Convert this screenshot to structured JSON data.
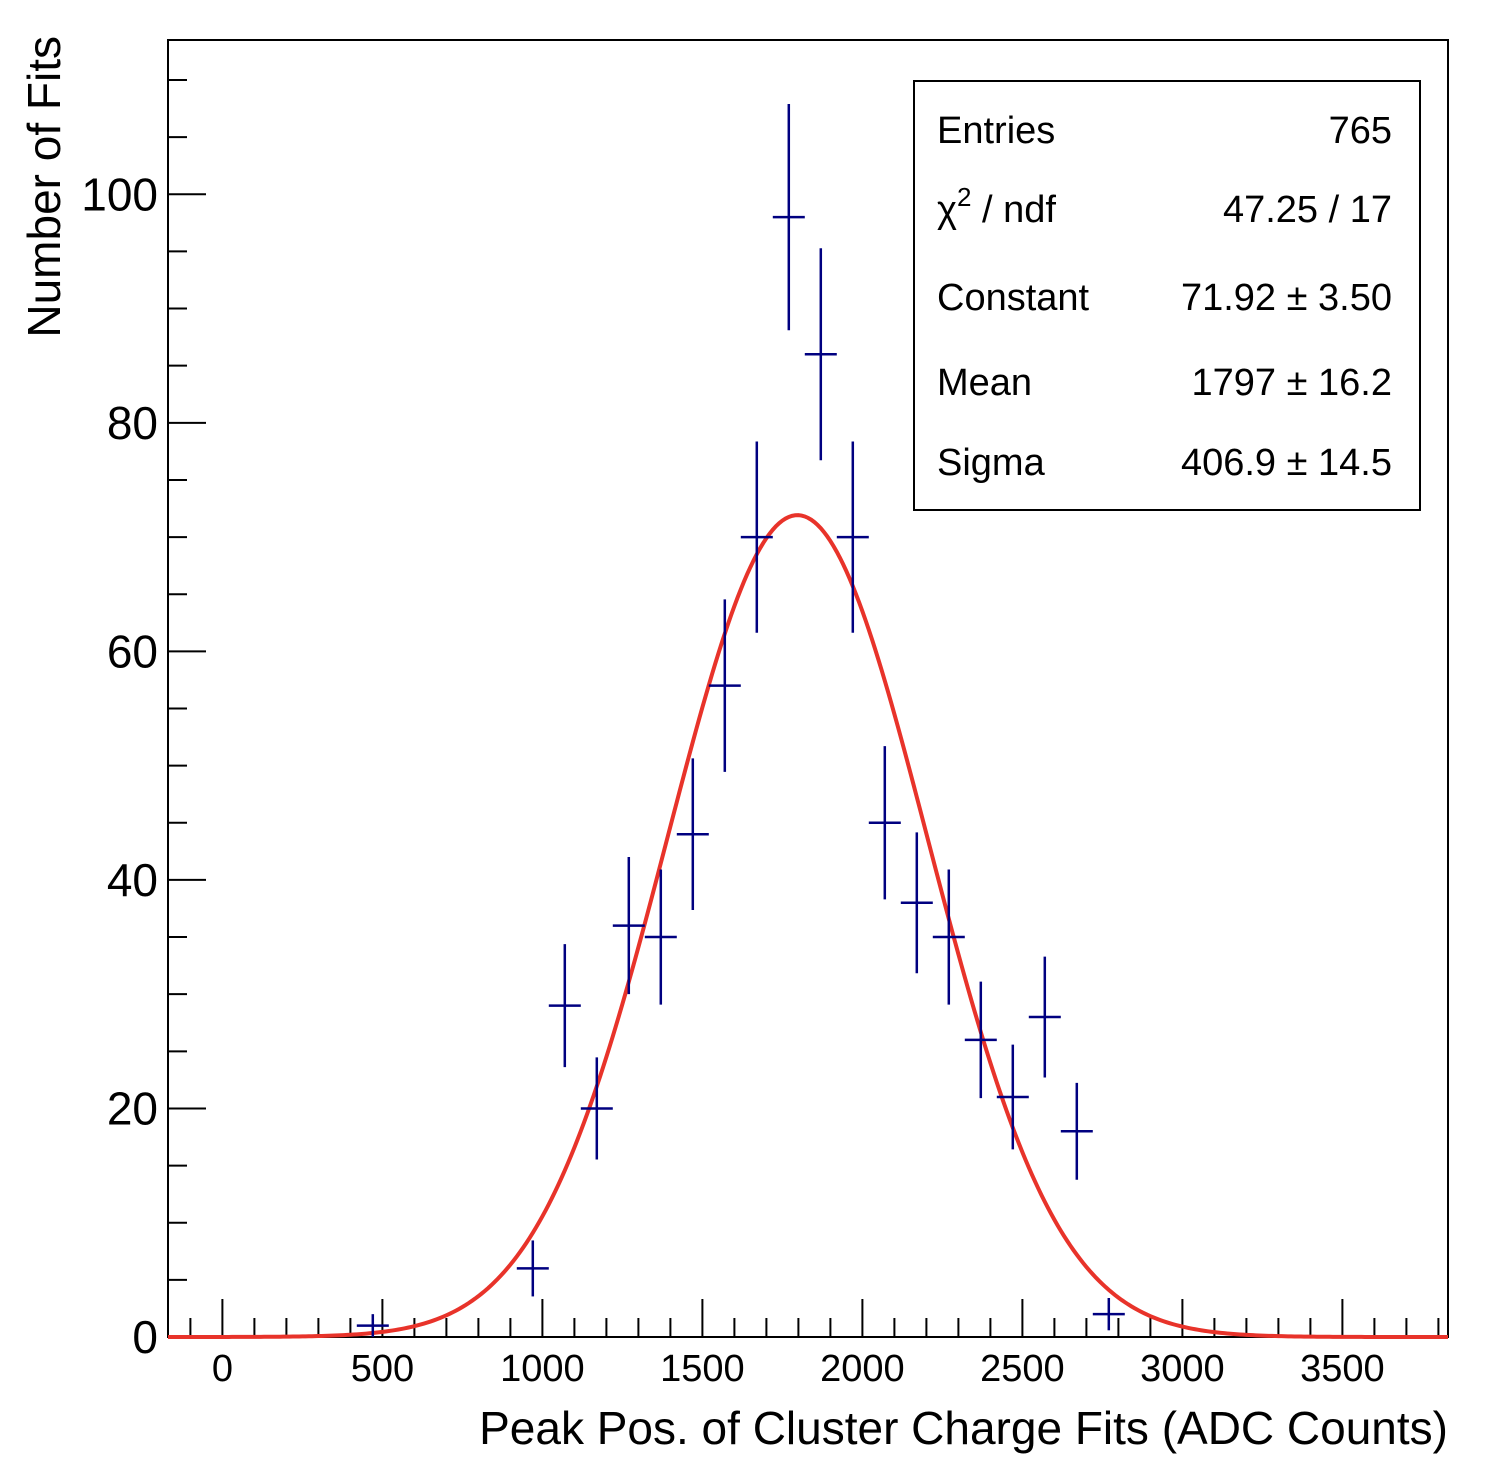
{
  "chart_data": {
    "type": "histogram",
    "title": "",
    "xlabel": "Peak Pos. of Cluster Charge Fits (ADC Counts)",
    "ylabel": "Number of Fits",
    "xlim": [
      -170,
      3830
    ],
    "ylim": [
      0,
      113.5
    ],
    "x_major_ticks": [
      0,
      500,
      1000,
      1500,
      2000,
      2500,
      3000,
      3500
    ],
    "x_tick_labels": [
      "0",
      "500",
      "1000",
      "1500",
      "2000",
      "2500",
      "3000",
      "3500"
    ],
    "y_major_ticks": [
      0,
      20,
      40,
      60,
      80,
      100
    ],
    "y_tick_labels": [
      "0",
      "20",
      "40",
      "60",
      "80",
      "100"
    ],
    "bin_width": 100,
    "series": [
      {
        "name": "histogram",
        "color": "#000080",
        "points": [
          {
            "x": 470,
            "y": 1
          },
          {
            "x": 970,
            "y": 6
          },
          {
            "x": 1070,
            "y": 29
          },
          {
            "x": 1170,
            "y": 20
          },
          {
            "x": 1270,
            "y": 36
          },
          {
            "x": 1370,
            "y": 35
          },
          {
            "x": 1470,
            "y": 44
          },
          {
            "x": 1570,
            "y": 57
          },
          {
            "x": 1670,
            "y": 70
          },
          {
            "x": 1770,
            "y": 98
          },
          {
            "x": 1870,
            "y": 86
          },
          {
            "x": 1970,
            "y": 70
          },
          {
            "x": 2070,
            "y": 45
          },
          {
            "x": 2170,
            "y": 38
          },
          {
            "x": 2270,
            "y": 35
          },
          {
            "x": 2370,
            "y": 26
          },
          {
            "x": 2470,
            "y": 21
          },
          {
            "x": 2570,
            "y": 28
          },
          {
            "x": 2670,
            "y": 18
          },
          {
            "x": 2770,
            "y": 2
          }
        ]
      },
      {
        "name": "gaussian fit",
        "color": "#e8332a",
        "constant": 71.92,
        "mean": 1797,
        "sigma": 406.9,
        "x_range": [
          -170,
          3830
        ]
      }
    ],
    "stats_box": {
      "position": "top-right",
      "rows": [
        {
          "label": "Entries",
          "value": "765"
        },
        {
          "label": "χ² / ndf",
          "value": "47.25 / 17"
        },
        {
          "label": "Constant",
          "value": "71.92 ± 3.50"
        },
        {
          "label": "Mean",
          "value": "1797 ± 16.2"
        },
        {
          "label": "Sigma",
          "value": "406.9 ± 14.5"
        }
      ]
    }
  }
}
